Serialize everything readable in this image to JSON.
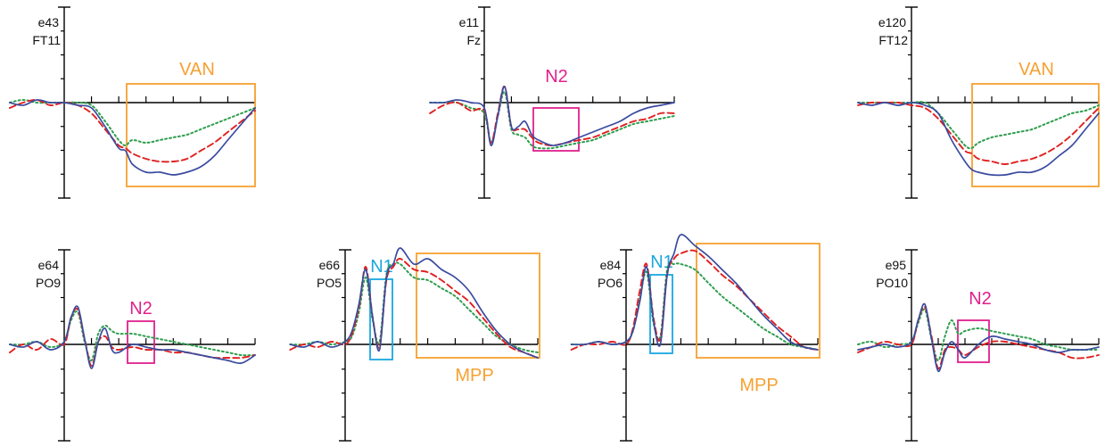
{
  "colors": {
    "series": [
      "#3a4b9f",
      "#e02020",
      "#2f9e4f"
    ],
    "axis": "#000000",
    "box_orange": "#f7a030",
    "box_magenta": "#e0208c",
    "box_cyan": "#1aa7e0"
  },
  "chart_data": [
    {
      "type": "line",
      "electrode": "e43",
      "site": "FT11",
      "components": [
        {
          "label": "VAN",
          "color": "orange"
        }
      ],
      "x": [
        -0.4,
        -0.3,
        -0.2,
        -0.1,
        0.0,
        0.1,
        0.2,
        0.3,
        0.4,
        0.45,
        0.5,
        0.6,
        0.7,
        0.8,
        0.9,
        1.0,
        1.1,
        1.2,
        1.3,
        1.4
      ],
      "series": [
        {
          "values": [
            0.0,
            -0.1,
            0.1,
            0.0,
            0.0,
            -0.1,
            -0.2,
            -0.9,
            -1.7,
            -1.8,
            -2.3,
            -2.6,
            -2.6,
            -2.7,
            -2.6,
            -2.4,
            -2.0,
            -1.4,
            -0.8,
            -0.2
          ]
        },
        {
          "values": [
            -0.2,
            0.0,
            0.1,
            -0.1,
            0.0,
            -0.1,
            -0.4,
            -1.0,
            -1.6,
            -1.7,
            -1.9,
            -2.1,
            -2.2,
            -2.2,
            -2.1,
            -1.8,
            -1.5,
            -1.1,
            -0.7,
            -0.3
          ]
        },
        {
          "values": [
            0.0,
            0.1,
            0.0,
            0.0,
            0.0,
            0.0,
            -0.1,
            -0.7,
            -1.4,
            -1.6,
            -1.4,
            -1.5,
            -1.4,
            -1.3,
            -1.2,
            -1.0,
            -0.8,
            -0.6,
            -0.4,
            -0.2
          ]
        }
      ]
    },
    {
      "type": "line",
      "electrode": "e11",
      "site": "Fz",
      "components": [
        {
          "label": "N2",
          "color": "magenta"
        }
      ],
      "x": [
        -0.4,
        -0.3,
        -0.2,
        -0.1,
        0.0,
        0.05,
        0.1,
        0.15,
        0.2,
        0.25,
        0.3,
        0.35,
        0.4,
        0.5,
        0.6,
        0.7,
        0.8,
        0.9,
        1.0,
        1.1,
        1.2,
        1.3,
        1.4
      ],
      "series": [
        {
          "values": [
            0.0,
            0.0,
            0.1,
            0.0,
            -0.2,
            -1.6,
            -0.5,
            0.6,
            -0.9,
            -0.9,
            -0.7,
            -1.2,
            -1.4,
            -1.6,
            -1.5,
            -1.3,
            -1.1,
            -0.9,
            -0.7,
            -0.4,
            -0.2,
            -0.1,
            0.0
          ]
        },
        {
          "values": [
            -0.4,
            -0.1,
            0.0,
            -0.3,
            -0.3,
            -1.5,
            -0.4,
            0.6,
            -0.9,
            -1.0,
            -1.0,
            -1.3,
            -1.5,
            -1.6,
            -1.5,
            -1.4,
            -1.3,
            -1.1,
            -0.9,
            -0.7,
            -0.6,
            -0.4,
            -0.4
          ]
        },
        {
          "values": [
            0.0,
            0.0,
            0.0,
            -0.2,
            -0.4,
            -1.5,
            -0.5,
            0.4,
            -1.0,
            -1.2,
            -1.3,
            -1.6,
            -1.7,
            -1.7,
            -1.6,
            -1.5,
            -1.4,
            -1.2,
            -1.0,
            -0.8,
            -0.7,
            -0.6,
            -0.5
          ]
        }
      ]
    },
    {
      "type": "line",
      "electrode": "e120",
      "site": "FT12",
      "components": [
        {
          "label": "VAN",
          "color": "orange"
        }
      ],
      "x": [
        -0.4,
        -0.3,
        -0.2,
        -0.1,
        0.0,
        0.1,
        0.2,
        0.3,
        0.4,
        0.45,
        0.5,
        0.6,
        0.7,
        0.8,
        0.9,
        1.0,
        1.1,
        1.2,
        1.3,
        1.4
      ],
      "series": [
        {
          "values": [
            0.0,
            -0.1,
            0.0,
            -0.1,
            0.0,
            -0.1,
            -0.4,
            -1.4,
            -2.2,
            -2.5,
            -2.6,
            -2.7,
            -2.7,
            -2.6,
            -2.6,
            -2.4,
            -2.0,
            -1.6,
            -1.0,
            -0.4
          ]
        },
        {
          "values": [
            -0.1,
            0.0,
            0.0,
            0.0,
            -0.1,
            -0.2,
            -0.6,
            -1.2,
            -1.8,
            -1.9,
            -2.1,
            -2.2,
            -2.3,
            -2.2,
            -2.1,
            -1.9,
            -1.6,
            -1.2,
            -0.7,
            -0.2
          ]
        },
        {
          "values": [
            0.0,
            0.0,
            0.0,
            0.0,
            0.0,
            0.0,
            -0.4,
            -1.0,
            -1.6,
            -1.7,
            -1.5,
            -1.3,
            -1.2,
            -1.1,
            -1.0,
            -0.8,
            -0.6,
            -0.4,
            -0.3,
            -0.1
          ]
        }
      ]
    },
    {
      "type": "line",
      "electrode": "e64",
      "site": "PO9",
      "components": [
        {
          "label": "N2",
          "color": "magenta"
        }
      ],
      "x": [
        -0.4,
        -0.3,
        -0.2,
        -0.1,
        0.0,
        0.05,
        0.1,
        0.15,
        0.2,
        0.25,
        0.3,
        0.35,
        0.4,
        0.5,
        0.6,
        0.7,
        0.8,
        0.9,
        1.0,
        1.1,
        1.2,
        1.3,
        1.4
      ],
      "series": [
        {
          "values": [
            0.0,
            -0.1,
            0.1,
            -0.2,
            0.1,
            1.0,
            1.4,
            0.2,
            -0.9,
            0.1,
            0.6,
            -0.2,
            -0.3,
            0.0,
            -0.1,
            -0.2,
            -0.2,
            -0.3,
            -0.4,
            -0.5,
            -0.6,
            -0.7,
            -0.4
          ]
        },
        {
          "values": [
            -0.3,
            0.0,
            -0.2,
            0.2,
            0.0,
            1.0,
            1.3,
            0.2,
            -0.8,
            0.1,
            0.3,
            -0.1,
            -0.2,
            -0.1,
            -0.2,
            -0.2,
            -0.3,
            -0.3,
            -0.4,
            -0.5,
            -0.5,
            -0.5,
            -0.4
          ]
        },
        {
          "values": [
            0.0,
            0.0,
            0.1,
            -0.1,
            0.1,
            0.9,
            1.2,
            0.1,
            -0.6,
            0.4,
            0.7,
            0.5,
            0.4,
            0.4,
            0.3,
            0.2,
            0.1,
            0.0,
            -0.1,
            -0.2,
            -0.3,
            -0.4,
            -0.4
          ]
        }
      ]
    },
    {
      "type": "line",
      "electrode": "e66",
      "site": "PO5",
      "components": [
        {
          "label": "N1",
          "color": "cyan"
        },
        {
          "label": "MPP",
          "color": "orange"
        }
      ],
      "x": [
        -0.4,
        -0.3,
        -0.2,
        -0.1,
        0.0,
        0.05,
        0.1,
        0.15,
        0.2,
        0.25,
        0.3,
        0.35,
        0.4,
        0.5,
        0.6,
        0.7,
        0.8,
        0.9,
        1.0,
        1.1,
        1.2,
        1.3,
        1.4
      ],
      "series": [
        {
          "values": [
            0.0,
            -0.1,
            0.1,
            -0.1,
            0.1,
            0.5,
            1.5,
            2.8,
            1.0,
            -0.2,
            2.5,
            3.0,
            3.6,
            3.0,
            3.2,
            2.8,
            2.5,
            2.0,
            1.2,
            0.5,
            0.0,
            -0.3,
            -0.5
          ]
        },
        {
          "values": [
            -0.2,
            0.0,
            -0.1,
            0.1,
            0.0,
            0.4,
            1.4,
            2.9,
            1.0,
            -0.1,
            2.4,
            2.9,
            3.2,
            2.8,
            2.7,
            2.4,
            2.0,
            1.6,
            1.0,
            0.4,
            -0.1,
            -0.3,
            -0.5
          ]
        },
        {
          "values": [
            0.0,
            0.0,
            0.1,
            0.0,
            0.1,
            0.3,
            1.2,
            2.5,
            0.9,
            0.1,
            2.6,
            3.0,
            3.0,
            2.5,
            2.4,
            2.1,
            1.8,
            1.3,
            0.8,
            0.3,
            0.0,
            -0.2,
            -0.3
          ]
        }
      ]
    },
    {
      "type": "line",
      "electrode": "e84",
      "site": "PO6",
      "components": [
        {
          "label": "N1",
          "color": "cyan"
        },
        {
          "label": "MPP",
          "color": "orange"
        }
      ],
      "x": [
        -0.4,
        -0.3,
        -0.2,
        -0.1,
        0.0,
        0.05,
        0.1,
        0.15,
        0.2,
        0.25,
        0.3,
        0.35,
        0.4,
        0.5,
        0.6,
        0.7,
        0.8,
        0.9,
        1.0,
        1.1,
        1.2,
        1.3,
        1.4
      ],
      "series": [
        {
          "values": [
            0.0,
            0.0,
            0.1,
            0.0,
            0.1,
            0.5,
            1.6,
            2.9,
            0.9,
            0.0,
            2.6,
            3.4,
            4.1,
            3.7,
            3.3,
            2.8,
            2.3,
            1.7,
            1.1,
            0.6,
            0.1,
            -0.1,
            -0.2
          ]
        },
        {
          "values": [
            -0.2,
            0.0,
            0.0,
            0.1,
            0.0,
            0.6,
            2.0,
            3.0,
            1.0,
            0.2,
            2.6,
            3.2,
            3.4,
            3.5,
            3.1,
            2.6,
            2.2,
            1.7,
            1.2,
            0.7,
            0.3,
            -0.1,
            -0.2
          ]
        },
        {
          "values": [
            0.0,
            0.0,
            0.1,
            0.0,
            0.1,
            0.5,
            1.7,
            2.7,
            0.8,
            0.3,
            2.8,
            3.0,
            3.0,
            2.8,
            2.3,
            1.8,
            1.4,
            1.0,
            0.6,
            0.3,
            0.0,
            -0.1,
            -0.2
          ]
        }
      ]
    },
    {
      "type": "line",
      "electrode": "e95",
      "site": "PO10",
      "components": [
        {
          "label": "N2",
          "color": "magenta"
        }
      ],
      "x": [
        -0.4,
        -0.3,
        -0.2,
        -0.1,
        0.0,
        0.05,
        0.1,
        0.15,
        0.2,
        0.25,
        0.3,
        0.35,
        0.4,
        0.5,
        0.6,
        0.7,
        0.8,
        0.9,
        1.0,
        1.1,
        1.2,
        1.3,
        1.4
      ],
      "series": [
        {
          "values": [
            -0.2,
            -0.1,
            0.0,
            -0.1,
            0.1,
            0.9,
            1.5,
            0.2,
            -1.0,
            -0.3,
            0.1,
            -0.2,
            -0.5,
            0.0,
            0.3,
            0.2,
            0.1,
            0.0,
            -0.2,
            -0.3,
            -0.2,
            -0.2,
            -0.1
          ]
        },
        {
          "values": [
            -0.3,
            -0.1,
            0.1,
            0.0,
            0.0,
            0.9,
            1.4,
            0.3,
            -0.9,
            -0.2,
            -0.1,
            -0.2,
            -0.4,
            -0.1,
            0.1,
            0.1,
            0.0,
            -0.1,
            -0.2,
            -0.3,
            -0.5,
            -0.5,
            -0.4
          ]
        },
        {
          "values": [
            0.0,
            0.1,
            -0.1,
            0.0,
            0.1,
            0.8,
            1.3,
            0.2,
            -0.6,
            0.3,
            0.9,
            0.4,
            0.5,
            0.6,
            0.5,
            0.4,
            0.3,
            0.2,
            0.0,
            -0.1,
            -0.2,
            -0.2,
            -0.2
          ]
        }
      ]
    }
  ]
}
